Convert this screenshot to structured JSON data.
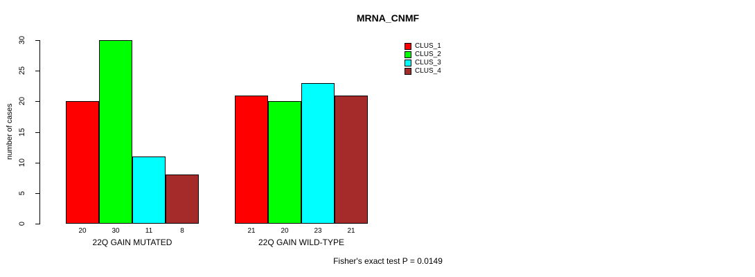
{
  "chart_data": {
    "type": "bar",
    "title": "MRNA_CNMF",
    "ylabel": "number of cases",
    "xlabel": "",
    "ylim": [
      0,
      30
    ],
    "yticks": [
      0,
      5,
      10,
      15,
      20,
      25,
      30
    ],
    "grid": false,
    "categories": [
      "22Q GAIN MUTATED",
      "22Q GAIN WILD-TYPE"
    ],
    "series": [
      {
        "name": "CLUS_1",
        "color": "#ff0000",
        "values": [
          20,
          21
        ]
      },
      {
        "name": "CLUS_2",
        "color": "#00ff00",
        "values": [
          30,
          20
        ]
      },
      {
        "name": "CLUS_3",
        "color": "#00ffff",
        "values": [
          11,
          23
        ]
      },
      {
        "name": "CLUS_4",
        "color": "#a52a2a",
        "values": [
          8,
          21
        ]
      }
    ],
    "bar_value_labels": true,
    "legend_position": "top-right",
    "annotation": "Fisher's exact test P = 0.0149"
  }
}
